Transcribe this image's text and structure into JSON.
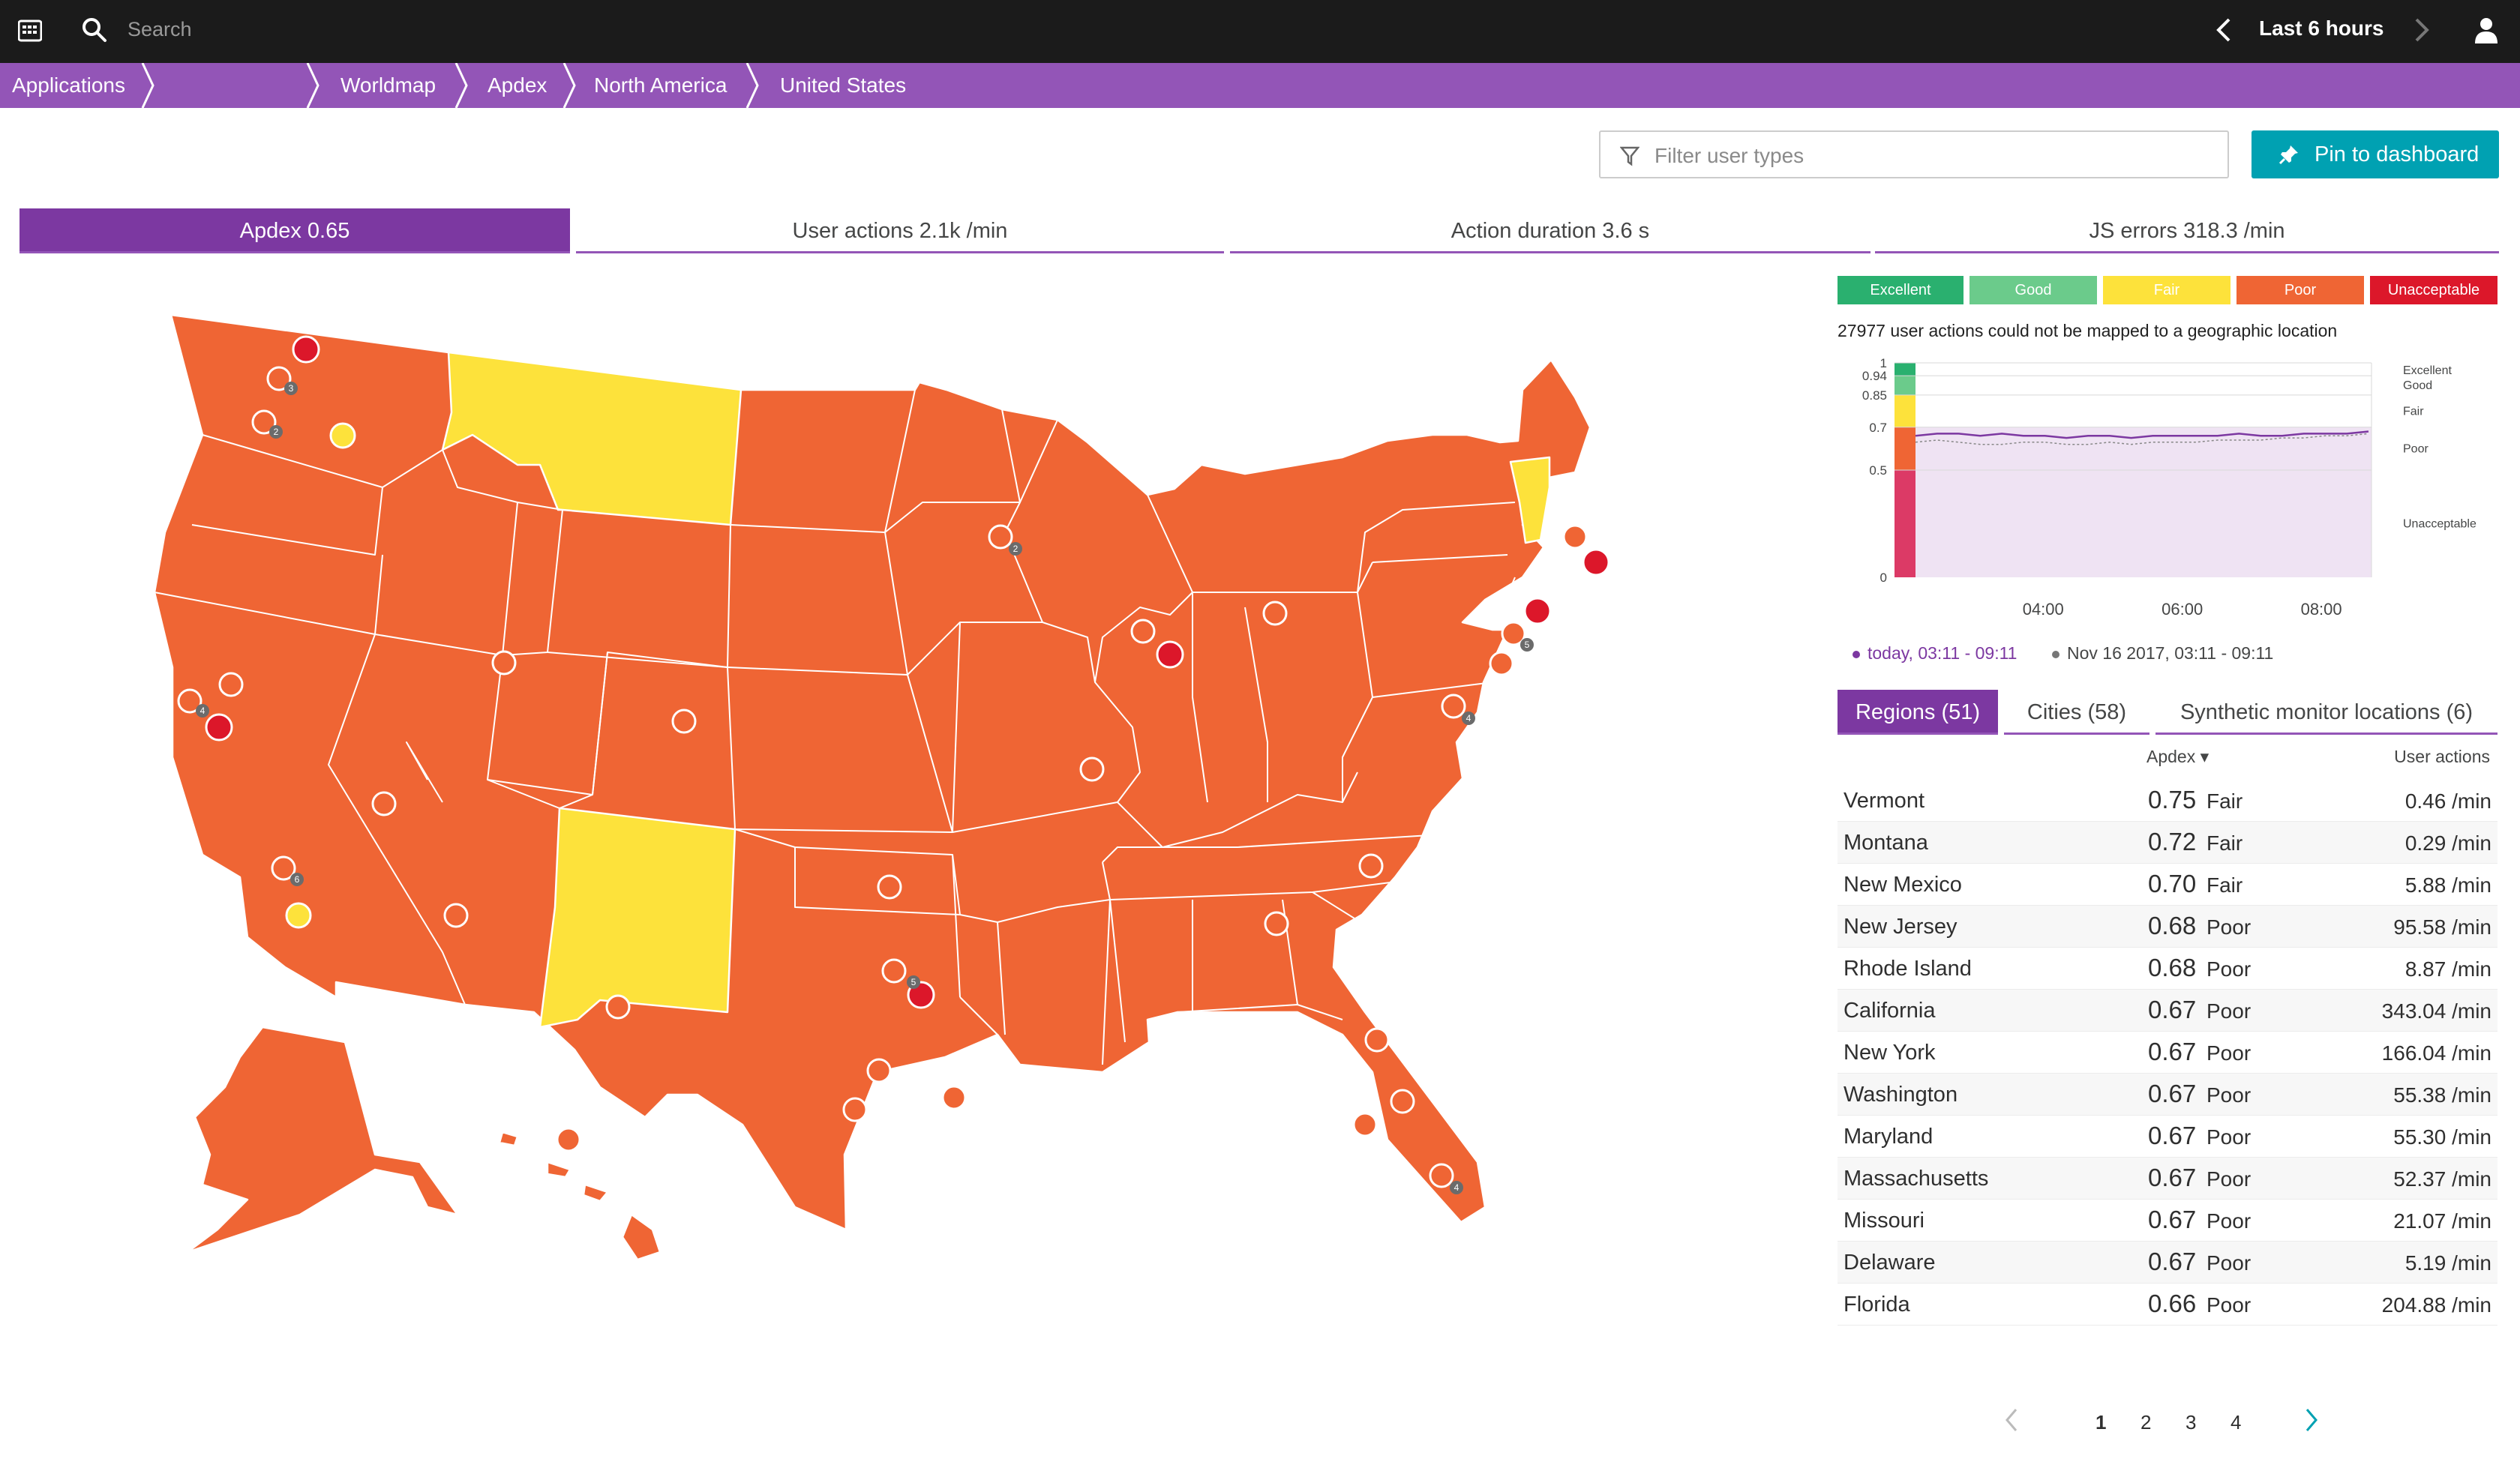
{
  "topbar": {
    "search_placeholder": "Search",
    "timeframe": "Last 6 hours"
  },
  "breadcrumb": [
    "Applications",
    "",
    "Worldmap",
    "Apdex",
    "North America",
    "United States"
  ],
  "filter": {
    "placeholder": "Filter user types"
  },
  "pin_button": "Pin to dashboard",
  "metric_tabs": [
    {
      "label": "Apdex 0.65",
      "active": true
    },
    {
      "label": "User actions 2.1k /min",
      "active": false
    },
    {
      "label": "Action duration 3.6 s",
      "active": false
    },
    {
      "label": "JS errors 318.3 /min",
      "active": false
    }
  ],
  "legend": [
    {
      "label": "Excellent",
      "color": "#2ab06f"
    },
    {
      "label": "Good",
      "color": "#6bcb8b"
    },
    {
      "label": "Fair",
      "color": "#fde23b"
    },
    {
      "label": "Poor",
      "color": "#ef6534"
    },
    {
      "label": "Unacceptable",
      "color": "#dc172a"
    }
  ],
  "unmapped_text": "27977 user actions could not be mapped to a geographic location",
  "chart_data": {
    "type": "line",
    "title": "",
    "y_ticks": [
      "1",
      "0.94",
      "0.85",
      "0.7",
      "0.5",
      "0"
    ],
    "x_ticks": [
      "04:00",
      "06:00",
      "08:00"
    ],
    "bands": [
      "Excellent",
      "Good",
      "Fair",
      "Poor",
      "Unacceptable"
    ],
    "ylim": [
      0,
      1
    ],
    "series": [
      {
        "name": "today, 03:11 - 09:11",
        "color": "#7c38a1",
        "values": [
          0.66,
          0.67,
          0.67,
          0.66,
          0.67,
          0.66,
          0.66,
          0.65,
          0.66,
          0.66,
          0.65,
          0.66,
          0.66,
          0.66,
          0.66,
          0.67,
          0.66,
          0.66,
          0.67,
          0.67,
          0.67,
          0.68
        ]
      },
      {
        "name": "Nov 16 2017, 03:11 - 09:11",
        "color": "#888888",
        "values": [
          0.63,
          0.64,
          0.63,
          0.62,
          0.62,
          0.63,
          0.63,
          0.62,
          0.62,
          0.63,
          0.62,
          0.63,
          0.63,
          0.63,
          0.64,
          0.64,
          0.64,
          0.65,
          0.65,
          0.66,
          0.66,
          0.67
        ]
      }
    ]
  },
  "region_tabs": [
    {
      "label": "Regions (51)",
      "active": true
    },
    {
      "label": "Cities (58)",
      "active": false
    },
    {
      "label": "Synthetic monitor locations (6)",
      "active": false
    }
  ],
  "columns": {
    "apdex": "Apdex ▾",
    "user_actions": "User actions"
  },
  "regions": [
    {
      "name": "Vermont",
      "apdex": "0.75",
      "rating": "Fair",
      "ua": "0.46 /min"
    },
    {
      "name": "Montana",
      "apdex": "0.72",
      "rating": "Fair",
      "ua": "0.29 /min"
    },
    {
      "name": "New Mexico",
      "apdex": "0.70",
      "rating": "Fair",
      "ua": "5.88 /min"
    },
    {
      "name": "New Jersey",
      "apdex": "0.68",
      "rating": "Poor",
      "ua": "95.58 /min"
    },
    {
      "name": "Rhode Island",
      "apdex": "0.68",
      "rating": "Poor",
      "ua": "8.87 /min"
    },
    {
      "name": "California",
      "apdex": "0.67",
      "rating": "Poor",
      "ua": "343.04 /min"
    },
    {
      "name": "New York",
      "apdex": "0.67",
      "rating": "Poor",
      "ua": "166.04 /min"
    },
    {
      "name": "Washington",
      "apdex": "0.67",
      "rating": "Poor",
      "ua": "55.38 /min"
    },
    {
      "name": "Maryland",
      "apdex": "0.67",
      "rating": "Poor",
      "ua": "55.30 /min"
    },
    {
      "name": "Massachusetts",
      "apdex": "0.67",
      "rating": "Poor",
      "ua": "52.37 /min"
    },
    {
      "name": "Missouri",
      "apdex": "0.67",
      "rating": "Poor",
      "ua": "21.07 /min"
    },
    {
      "name": "Delaware",
      "apdex": "0.67",
      "rating": "Poor",
      "ua": "5.19 /min"
    },
    {
      "name": "Florida",
      "apdex": "0.66",
      "rating": "Poor",
      "ua": "204.88 /min"
    }
  ],
  "pagination": {
    "pages": [
      "1",
      "2",
      "3",
      "4"
    ],
    "current": "1"
  },
  "map_badges": [
    "3",
    "2",
    "4",
    "6",
    "2",
    "5",
    "5",
    "4",
    "4"
  ],
  "colors": {
    "poor": "#ef6534",
    "fair": "#fde23b",
    "unacceptable": "#dc172a",
    "accent": "#9355b7",
    "accent_dark": "#7c38a1",
    "teal": "#00a1b2"
  }
}
